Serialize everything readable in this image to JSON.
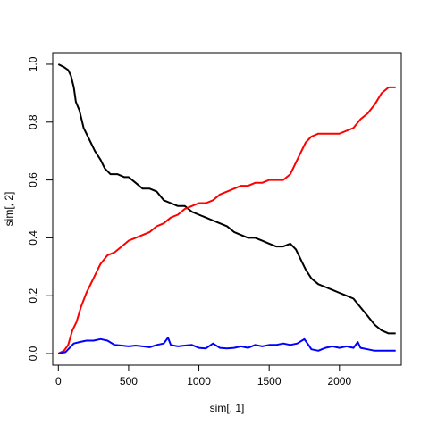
{
  "chart_data": {
    "type": "line",
    "title": "",
    "xlabel": "sim[, 1]",
    "ylabel": "sim[, 2]",
    "xlim": [
      -40,
      2440
    ],
    "ylim": [
      -0.04,
      1.04
    ],
    "x_ticks": [
      0,
      500,
      1000,
      1500,
      2000
    ],
    "y_ticks": [
      0.0,
      0.2,
      0.4,
      0.6,
      0.8,
      1.0
    ],
    "x_tick_labels": [
      "0",
      "500",
      "1000",
      "1500",
      "2000"
    ],
    "y_tick_labels": [
      "0.0",
      "0.2",
      "0.4",
      "0.6",
      "0.8",
      "1.0"
    ],
    "grid": false,
    "legend": "none",
    "series": [
      {
        "color": "#000000",
        "points": [
          [
            0,
            1.0
          ],
          [
            40,
            0.99
          ],
          [
            70,
            0.98
          ],
          [
            90,
            0.96
          ],
          [
            110,
            0.92
          ],
          [
            125,
            0.87
          ],
          [
            150,
            0.84
          ],
          [
            180,
            0.78
          ],
          [
            220,
            0.74
          ],
          [
            260,
            0.7
          ],
          [
            300,
            0.67
          ],
          [
            330,
            0.64
          ],
          [
            370,
            0.62
          ],
          [
            420,
            0.62
          ],
          [
            470,
            0.61
          ],
          [
            500,
            0.61
          ],
          [
            550,
            0.59
          ],
          [
            600,
            0.57
          ],
          [
            650,
            0.57
          ],
          [
            700,
            0.56
          ],
          [
            750,
            0.53
          ],
          [
            800,
            0.52
          ],
          [
            850,
            0.51
          ],
          [
            900,
            0.51
          ],
          [
            950,
            0.49
          ],
          [
            1000,
            0.48
          ],
          [
            1050,
            0.47
          ],
          [
            1100,
            0.46
          ],
          [
            1150,
            0.45
          ],
          [
            1200,
            0.44
          ],
          [
            1250,
            0.42
          ],
          [
            1300,
            0.41
          ],
          [
            1350,
            0.4
          ],
          [
            1400,
            0.4
          ],
          [
            1450,
            0.39
          ],
          [
            1500,
            0.38
          ],
          [
            1550,
            0.37
          ],
          [
            1600,
            0.37
          ],
          [
            1650,
            0.38
          ],
          [
            1690,
            0.36
          ],
          [
            1730,
            0.32
          ],
          [
            1760,
            0.29
          ],
          [
            1800,
            0.26
          ],
          [
            1850,
            0.24
          ],
          [
            1900,
            0.23
          ],
          [
            1950,
            0.22
          ],
          [
            2000,
            0.21
          ],
          [
            2050,
            0.2
          ],
          [
            2100,
            0.19
          ],
          [
            2150,
            0.16
          ],
          [
            2200,
            0.13
          ],
          [
            2250,
            0.1
          ],
          [
            2300,
            0.08
          ],
          [
            2350,
            0.07
          ],
          [
            2400,
            0.07
          ]
        ]
      },
      {
        "color": "#ff0000",
        "points": [
          [
            0,
            0.0
          ],
          [
            40,
            0.01
          ],
          [
            70,
            0.03
          ],
          [
            100,
            0.08
          ],
          [
            130,
            0.11
          ],
          [
            160,
            0.16
          ],
          [
            200,
            0.21
          ],
          [
            250,
            0.26
          ],
          [
            300,
            0.31
          ],
          [
            350,
            0.34
          ],
          [
            400,
            0.35
          ],
          [
            450,
            0.37
          ],
          [
            500,
            0.39
          ],
          [
            550,
            0.4
          ],
          [
            600,
            0.41
          ],
          [
            650,
            0.42
          ],
          [
            700,
            0.44
          ],
          [
            750,
            0.45
          ],
          [
            800,
            0.47
          ],
          [
            850,
            0.48
          ],
          [
            900,
            0.5
          ],
          [
            950,
            0.51
          ],
          [
            1000,
            0.52
          ],
          [
            1050,
            0.52
          ],
          [
            1100,
            0.53
          ],
          [
            1150,
            0.55
          ],
          [
            1200,
            0.56
          ],
          [
            1250,
            0.57
          ],
          [
            1300,
            0.58
          ],
          [
            1350,
            0.58
          ],
          [
            1400,
            0.59
          ],
          [
            1450,
            0.59
          ],
          [
            1500,
            0.6
          ],
          [
            1550,
            0.6
          ],
          [
            1600,
            0.6
          ],
          [
            1650,
            0.62
          ],
          [
            1690,
            0.66
          ],
          [
            1730,
            0.7
          ],
          [
            1760,
            0.73
          ],
          [
            1800,
            0.75
          ],
          [
            1850,
            0.76
          ],
          [
            1900,
            0.76
          ],
          [
            1950,
            0.76
          ],
          [
            2000,
            0.76
          ],
          [
            2050,
            0.77
          ],
          [
            2100,
            0.78
          ],
          [
            2150,
            0.81
          ],
          [
            2200,
            0.83
          ],
          [
            2250,
            0.86
          ],
          [
            2300,
            0.9
          ],
          [
            2350,
            0.92
          ],
          [
            2400,
            0.92
          ]
        ]
      },
      {
        "color": "#0000ff",
        "points": [
          [
            0,
            0.0
          ],
          [
            50,
            0.005
          ],
          [
            80,
            0.02
          ],
          [
            110,
            0.035
          ],
          [
            150,
            0.04
          ],
          [
            200,
            0.045
          ],
          [
            250,
            0.045
          ],
          [
            300,
            0.05
          ],
          [
            350,
            0.045
          ],
          [
            400,
            0.03
          ],
          [
            450,
            0.028
          ],
          [
            500,
            0.025
          ],
          [
            550,
            0.028
          ],
          [
            600,
            0.025
          ],
          [
            650,
            0.022
          ],
          [
            700,
            0.03
          ],
          [
            750,
            0.035
          ],
          [
            780,
            0.055
          ],
          [
            800,
            0.03
          ],
          [
            850,
            0.025
          ],
          [
            900,
            0.028
          ],
          [
            950,
            0.03
          ],
          [
            1000,
            0.02
          ],
          [
            1050,
            0.018
          ],
          [
            1100,
            0.035
          ],
          [
            1150,
            0.02
          ],
          [
            1200,
            0.018
          ],
          [
            1250,
            0.02
          ],
          [
            1300,
            0.025
          ],
          [
            1350,
            0.02
          ],
          [
            1400,
            0.03
          ],
          [
            1450,
            0.025
          ],
          [
            1500,
            0.03
          ],
          [
            1550,
            0.03
          ],
          [
            1600,
            0.035
          ],
          [
            1650,
            0.03
          ],
          [
            1700,
            0.035
          ],
          [
            1750,
            0.05
          ],
          [
            1780,
            0.03
          ],
          [
            1800,
            0.015
          ],
          [
            1850,
            0.01
          ],
          [
            1900,
            0.02
          ],
          [
            1950,
            0.025
          ],
          [
            2000,
            0.02
          ],
          [
            2050,
            0.025
          ],
          [
            2100,
            0.02
          ],
          [
            2130,
            0.04
          ],
          [
            2150,
            0.02
          ],
          [
            2200,
            0.015
          ],
          [
            2250,
            0.01
          ],
          [
            2300,
            0.01
          ],
          [
            2350,
            0.01
          ],
          [
            2400,
            0.01
          ]
        ]
      }
    ]
  }
}
